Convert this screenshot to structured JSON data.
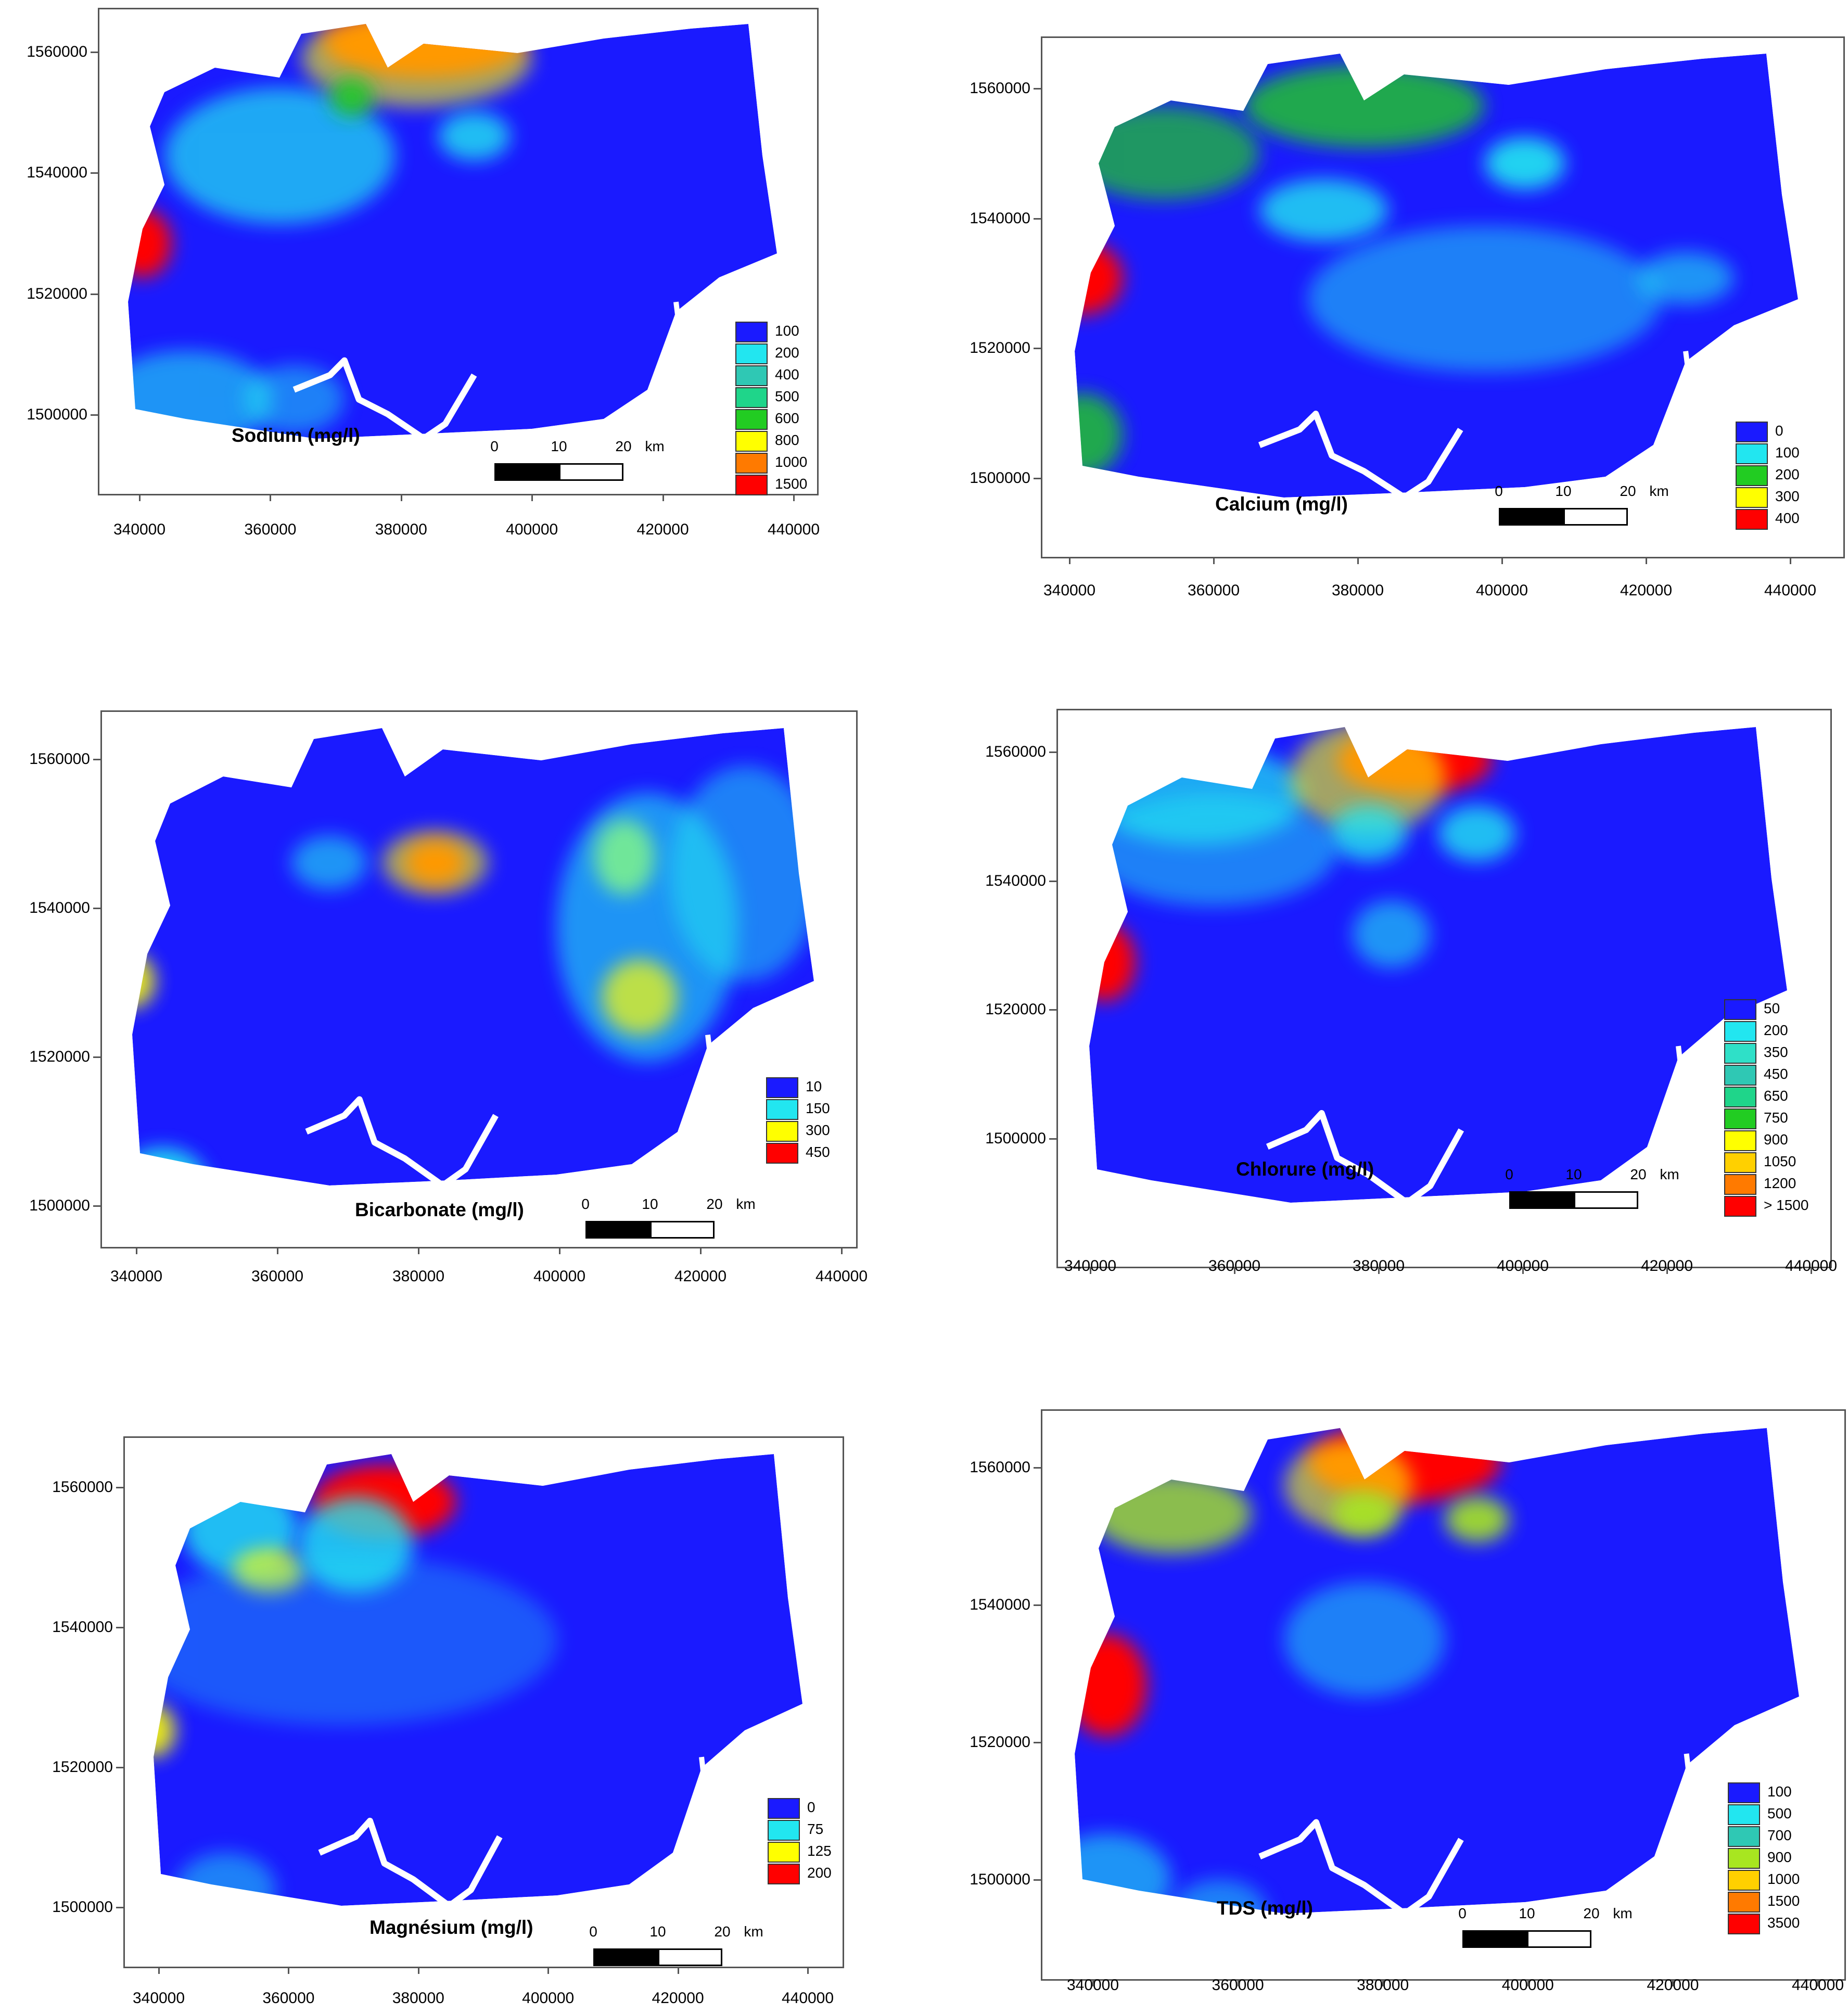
{
  "x_ticks": [
    "340000",
    "360000",
    "380000",
    "400000",
    "420000",
    "440000"
  ],
  "y_ticks": [
    "1500000",
    "1520000",
    "1540000",
    "1560000"
  ],
  "scalebar": {
    "labels": [
      "0",
      "10",
      "20"
    ],
    "unit": "km"
  },
  "colors": {
    "low": "#1a1aff",
    "sea": "#1e50e8",
    "cyan": "#22e6f0",
    "teal": "#2fc8b4",
    "green": "#22cc22",
    "yellowgreen": "#a8e620",
    "yellow": "#ffff00",
    "orange": "#ff7a00",
    "red": "#ff0000"
  },
  "panels": [
    {
      "title": "Sodium (mg/l)",
      "legend": [
        {
          "label": "100",
          "color": "#1a1aff"
        },
        {
          "label": "200",
          "color": "#22e6f0"
        },
        {
          "label": "400",
          "color": "#2fc8b4"
        },
        {
          "label": "500",
          "color": "#1fd58a"
        },
        {
          "label": "600",
          "color": "#22cc22"
        },
        {
          "label": "800",
          "color": "#ffff00"
        },
        {
          "label": "1000",
          "color": "#ff7a00"
        },
        {
          "label": "1500",
          "color": "#ff0000"
        }
      ]
    },
    {
      "title": "Calcium (mg/l)",
      "legend": [
        {
          "label": "0",
          "color": "#1a1aff"
        },
        {
          "label": "100",
          "color": "#22e6f0"
        },
        {
          "label": "200",
          "color": "#22cc22"
        },
        {
          "label": "300",
          "color": "#ffff00"
        },
        {
          "label": "400",
          "color": "#ff0000"
        }
      ]
    },
    {
      "title": "Bicarbonate (mg/l)",
      "legend": [
        {
          "label": "10",
          "color": "#1a1aff"
        },
        {
          "label": "150",
          "color": "#22e6f0"
        },
        {
          "label": "300",
          "color": "#ffff00"
        },
        {
          "label": "450",
          "color": "#ff0000"
        }
      ]
    },
    {
      "title": "Chlorure (mg/l)",
      "legend": [
        {
          "label": "50",
          "color": "#1a1aff"
        },
        {
          "label": "200",
          "color": "#22e6f0"
        },
        {
          "label": "350",
          "color": "#2fe0c8"
        },
        {
          "label": "450",
          "color": "#2fc8b4"
        },
        {
          "label": "650",
          "color": "#1fd58a"
        },
        {
          "label": "750",
          "color": "#22cc22"
        },
        {
          "label": "900",
          "color": "#ffff00"
        },
        {
          "label": "1050",
          "color": "#ffd000"
        },
        {
          "label": "1200",
          "color": "#ff7a00"
        },
        {
          "label": "> 1500",
          "color": "#ff0000"
        }
      ]
    },
    {
      "title": "Magnésium (mg/l)",
      "legend": [
        {
          "label": "0",
          "color": "#1a1aff"
        },
        {
          "label": "75",
          "color": "#22e6f0"
        },
        {
          "label": "125",
          "color": "#ffff00"
        },
        {
          "label": "200",
          "color": "#ff0000"
        }
      ]
    },
    {
      "title": "TDS (mg/l)",
      "legend": [
        {
          "label": "100",
          "color": "#1a1aff"
        },
        {
          "label": "500",
          "color": "#22e6f0"
        },
        {
          "label": "700",
          "color": "#2fc8b4"
        },
        {
          "label": "900",
          "color": "#a8e620"
        },
        {
          "label": "1000",
          "color": "#ffd000"
        },
        {
          "label": "1500",
          "color": "#ff7a00"
        },
        {
          "label": "3500",
          "color": "#ff0000"
        }
      ]
    }
  ]
}
